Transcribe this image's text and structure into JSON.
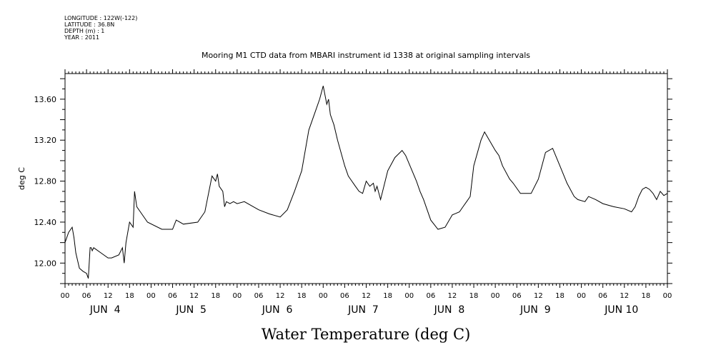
{
  "metadata": [
    "LONGITUDE : 122W(-122)",
    "LATITUDE : 36.8N",
    "DEPTH (m) : 1",
    "YEAR : 2011"
  ],
  "chart_data": {
    "type": "line",
    "title": "Mooring M1 CTD data from MBARI instrument id 1338 at original sampling intervals",
    "xlabel": "Water Temperature (deg C)",
    "ylabel": "deg C",
    "x_unit": "hours since 00:00 Jun 4 2011",
    "xlim": [
      0,
      168
    ],
    "ylim": [
      11.8,
      13.85
    ],
    "y_ticks": [
      "12.00",
      "12.40",
      "12.80",
      "13.20",
      "13.60"
    ],
    "y_tick_values": [
      12.0,
      12.4,
      12.8,
      13.2,
      13.6
    ],
    "x_hour_labels": [
      "00",
      "06",
      "12",
      "18",
      "00",
      "06",
      "12",
      "18",
      "00",
      "06",
      "12",
      "18",
      "00",
      "06",
      "12",
      "18",
      "00",
      "06",
      "12",
      "18",
      "00",
      "06",
      "12",
      "18",
      "00",
      "06",
      "12",
      "18",
      "00"
    ],
    "x_day_labels": [
      "JUN  4",
      "JUN  5",
      "JUN  6",
      "JUN  7",
      "JUN  8",
      "JUN  9",
      "JUN 10"
    ],
    "grid": false,
    "series": [
      {
        "name": "",
        "x": [
          0,
          1,
          2,
          2.5,
          3,
          4,
          5,
          6,
          6.5,
          7,
          7.3,
          7.6,
          8,
          10,
          12,
          13,
          15,
          16,
          16.5,
          17,
          18,
          19,
          19.4,
          20,
          21,
          23,
          27,
          30,
          31,
          33,
          37,
          39,
          41,
          42,
          42.5,
          43,
          44,
          44.5,
          45,
          46,
          47,
          48,
          50,
          54,
          57,
          60,
          62,
          64,
          66,
          68,
          70,
          71,
          72,
          73,
          73.5,
          74,
          75,
          76,
          78,
          79,
          80,
          81,
          82,
          83,
          84,
          85,
          86,
          86.5,
          87,
          88,
          90,
          92,
          94,
          95,
          98,
          99,
          100,
          102,
          104,
          106,
          108,
          110,
          111,
          112,
          113,
          114,
          116,
          117,
          118,
          120,
          121,
          122,
          124,
          125,
          127,
          130,
          132,
          133,
          134,
          136,
          138,
          140,
          142,
          143,
          145,
          146,
          148,
          150,
          153,
          156,
          158,
          159,
          160,
          161,
          162,
          163,
          164,
          165,
          166,
          167,
          168
        ],
        "values": [
          12.2,
          12.3,
          12.35,
          12.25,
          12.1,
          11.95,
          11.92,
          11.9,
          11.85,
          12.15,
          12.15,
          12.12,
          12.15,
          12.1,
          12.05,
          12.05,
          12.08,
          12.15,
          12.0,
          12.2,
          12.4,
          12.35,
          12.7,
          12.55,
          12.5,
          12.4,
          12.33,
          12.33,
          12.42,
          12.38,
          12.4,
          12.5,
          12.85,
          12.8,
          12.87,
          12.75,
          12.7,
          12.55,
          12.6,
          12.58,
          12.6,
          12.58,
          12.6,
          12.52,
          12.48,
          12.45,
          12.52,
          12.7,
          12.9,
          13.3,
          13.5,
          13.6,
          13.73,
          13.55,
          13.6,
          13.45,
          13.35,
          13.2,
          12.95,
          12.85,
          12.8,
          12.75,
          12.7,
          12.68,
          12.8,
          12.75,
          12.78,
          12.7,
          12.75,
          12.62,
          12.9,
          13.03,
          13.1,
          13.05,
          12.8,
          12.7,
          12.62,
          12.42,
          12.33,
          12.35,
          12.47,
          12.5,
          12.55,
          12.6,
          12.65,
          12.95,
          13.2,
          13.28,
          13.22,
          13.1,
          13.05,
          12.95,
          12.82,
          12.78,
          12.68,
          12.68,
          12.82,
          12.95,
          13.08,
          13.12,
          12.95,
          12.78,
          12.65,
          12.62,
          12.6,
          12.65,
          12.62,
          12.58,
          12.55,
          12.53,
          12.5,
          12.55,
          12.65,
          12.72,
          12.74,
          12.72,
          12.68,
          12.62,
          12.7,
          12.66,
          12.68
        ]
      }
    ]
  }
}
